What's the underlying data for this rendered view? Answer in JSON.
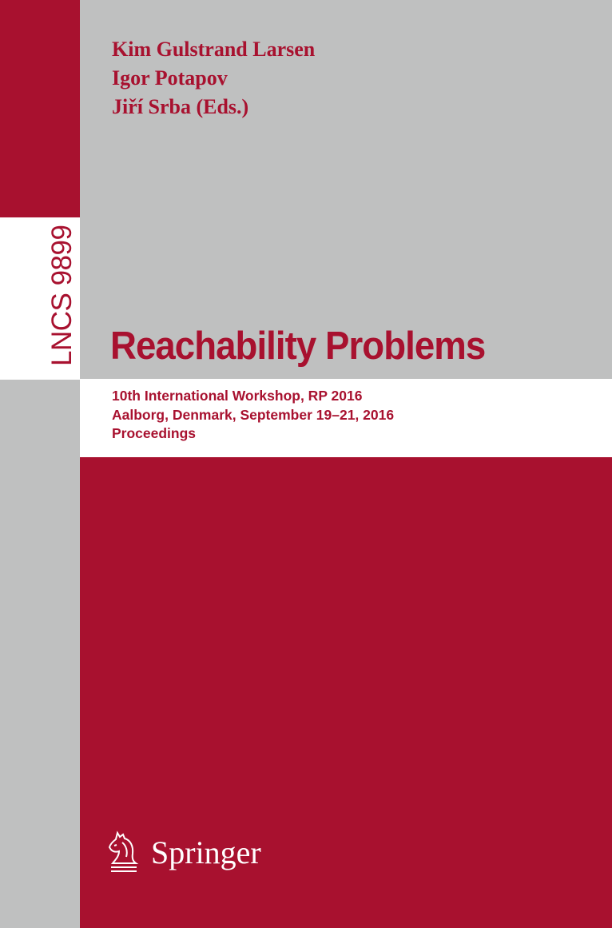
{
  "series": {
    "label": "LNCS 9899"
  },
  "editors": [
    "Kim Gulstrand Larsen",
    "Igor Potapov",
    "Jiří Srba (Eds.)"
  ],
  "title": "Reachability Problems",
  "subtitle": [
    "10th International Workshop, RP 2016",
    "Aalborg, Denmark, September 19–21, 2016",
    "Proceedings"
  ],
  "publisher": {
    "name": "Springer",
    "icon": "springer-horse-icon"
  },
  "colors": {
    "brand_red": "#a8112f",
    "gray": "#bfc0c0",
    "white": "#ffffff"
  }
}
